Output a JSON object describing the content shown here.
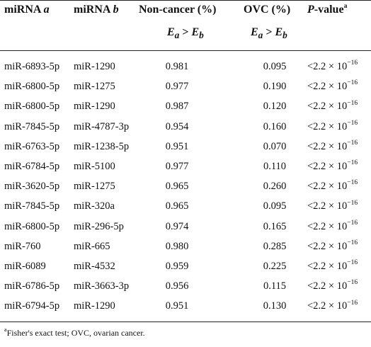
{
  "table": {
    "headers": {
      "mirna_a": {
        "prefix": "miRNA",
        "var": "a"
      },
      "mirna_b": {
        "prefix": "miRNA",
        "var": "b"
      },
      "noncancer": {
        "label": "Non-cancer (%)",
        "sub_e1": "a",
        "sub_e2": "b"
      },
      "ovc": {
        "label": "OVC (%)",
        "sub_e1": "a",
        "sub_e2": "b"
      },
      "pvalue": {
        "label_italic": "P",
        "label_rest": "-value",
        "footnote_mark": "a"
      },
      "e_letter": "E",
      "gt": ">"
    },
    "rows": [
      {
        "a": "miR-6893-5p",
        "b": "miR-1290",
        "noncancer": "0.981",
        "ovc": "0.095",
        "p": "<2.2 × 10",
        "p_exp": "−16"
      },
      {
        "a": "miR-6800-5p",
        "b": "miR-1275",
        "noncancer": "0.977",
        "ovc": "0.190",
        "p": "<2.2 × 10",
        "p_exp": "−16"
      },
      {
        "a": "miR-6800-5p",
        "b": "miR-1290",
        "noncancer": "0.987",
        "ovc": "0.120",
        "p": "<2.2 × 10",
        "p_exp": "−16"
      },
      {
        "a": "miR-7845-5p",
        "b": "miR-4787-3p",
        "noncancer": "0.954",
        "ovc": "0.160",
        "p": "<2.2 × 10",
        "p_exp": "−16"
      },
      {
        "a": "miR-6763-5p",
        "b": "miR-1238-5p",
        "noncancer": "0.951",
        "ovc": "0.070",
        "p": "<2.2 × 10",
        "p_exp": "−16"
      },
      {
        "a": "miR-6784-5p",
        "b": "miR-5100",
        "noncancer": "0.977",
        "ovc": "0.110",
        "p": "<2.2 × 10",
        "p_exp": "−16"
      },
      {
        "a": "miR-3620-5p",
        "b": "miR-1275",
        "noncancer": "0.965",
        "ovc": "0.260",
        "p": "<2.2 × 10",
        "p_exp": "−16"
      },
      {
        "a": "miR-7845-5p",
        "b": "miR-320a",
        "noncancer": "0.965",
        "ovc": "0.095",
        "p": "<2.2 × 10",
        "p_exp": "−16"
      },
      {
        "a": "miR-6800-5p",
        "b": "miR-296-5p",
        "noncancer": "0.974",
        "ovc": "0.165",
        "p": "<2.2 × 10",
        "p_exp": "−16"
      },
      {
        "a": "miR-760",
        "b": "miR-665",
        "noncancer": "0.980",
        "ovc": "0.285",
        "p": "<2.2 × 10",
        "p_exp": "−16"
      },
      {
        "a": "miR-6089",
        "b": "miR-4532",
        "noncancer": "0.959",
        "ovc": "0.225",
        "p": "<2.2 × 10",
        "p_exp": "−16"
      },
      {
        "a": "miR-6786-5p",
        "b": "miR-3663-3p",
        "noncancer": "0.956",
        "ovc": "0.115",
        "p": "<2.2 × 10",
        "p_exp": "−16"
      },
      {
        "a": "miR-6794-5p",
        "b": "miR-1290",
        "noncancer": "0.951",
        "ovc": "0.130",
        "p": "<2.2 × 10",
        "p_exp": "−16"
      }
    ]
  },
  "footnote": {
    "mark": "a",
    "text": "Fisher's exact test; OVC, ovarian cancer."
  }
}
